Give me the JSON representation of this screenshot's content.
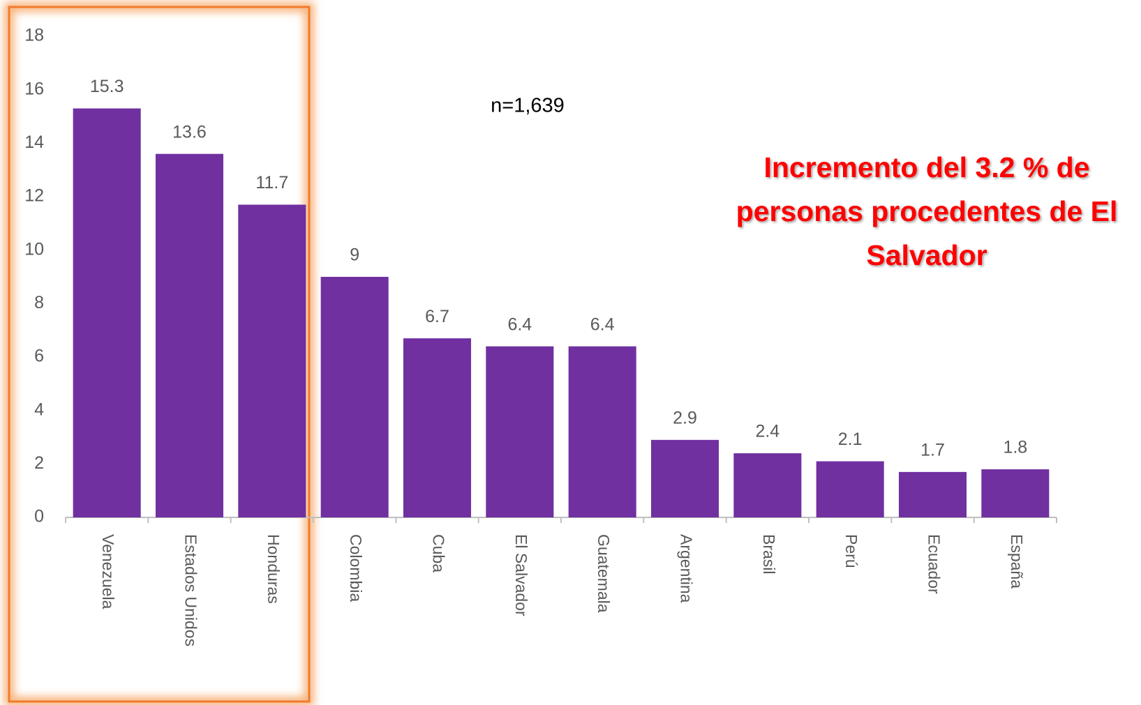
{
  "chart_data": {
    "type": "bar",
    "subtitle": "n=1,639",
    "annotation": [
      "Incremento del  3.2 % de",
      "personas procedentes de El",
      "Salvador"
    ],
    "categories": [
      "Venezuela",
      "Estados Unidos",
      "Honduras",
      "Colombia",
      "Cuba",
      "El Salvador",
      "Guatemala",
      "Argentina",
      "Brasil",
      "Perú",
      "Ecuador",
      "España"
    ],
    "values": [
      15.3,
      13.6,
      11.7,
      9,
      6.7,
      6.4,
      6.4,
      2.9,
      2.4,
      2.1,
      1.7,
      1.8
    ],
    "color": "#7030a0",
    "ylim": [
      0,
      18
    ],
    "yticks": [
      0,
      2,
      4,
      6,
      8,
      10,
      12,
      14,
      16,
      18
    ],
    "grid": false
  }
}
